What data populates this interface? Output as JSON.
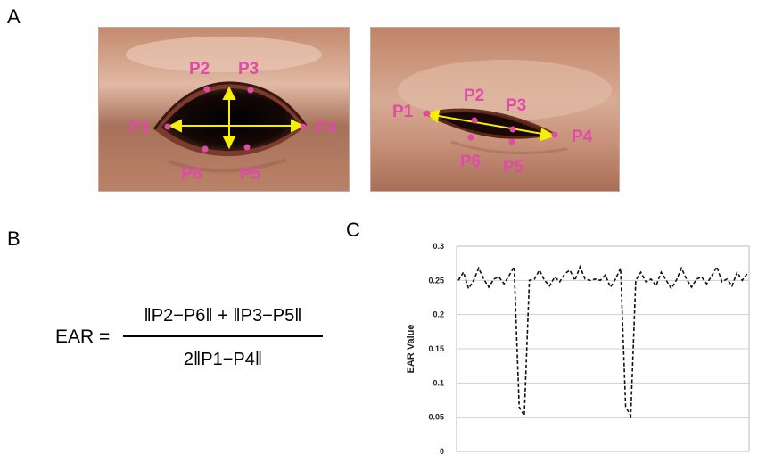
{
  "panels": {
    "a": "A",
    "b": "B",
    "c": "C"
  },
  "eye_open": {
    "points": [
      "P1",
      "P2",
      "P3",
      "P4",
      "P5",
      "P6"
    ]
  },
  "eye_closed": {
    "points": [
      "P1",
      "P2",
      "P3",
      "P4",
      "P5",
      "P6"
    ]
  },
  "formula": {
    "lhs": "EAR =",
    "numerator": "‖P2−P6‖ + ‖P3−P5‖",
    "denominator": "2‖P1−P4‖"
  },
  "colors": {
    "landmark": "#e04aa8",
    "arrow": "#f5f000",
    "grid": "#d0d0d0",
    "line": "#111111"
  },
  "chart_data": {
    "type": "line",
    "title": "",
    "xlabel": "",
    "ylabel": "EAR Value",
    "ylim": [
      0,
      0.3
    ],
    "yticks": [
      "0",
      "0.05",
      "0.1",
      "0.15",
      "0.2",
      "0.25",
      "0.3"
    ],
    "grid": true,
    "line_style": "dashed",
    "x": [
      0,
      1,
      2,
      3,
      4,
      5,
      6,
      7,
      8,
      9,
      10,
      11,
      12,
      13,
      14,
      15,
      16,
      17,
      18,
      19,
      20,
      21,
      22,
      23,
      24,
      25,
      26,
      27,
      28,
      29,
      30,
      31,
      32,
      33,
      34,
      35,
      36,
      37,
      38,
      39,
      40,
      41,
      42,
      43,
      44,
      45,
      46,
      47,
      48,
      49,
      50,
      51,
      52,
      53,
      54,
      55,
      56,
      57
    ],
    "series": [
      {
        "values": [
          0.25,
          0.262,
          0.238,
          0.25,
          0.268,
          0.252,
          0.24,
          0.252,
          0.255,
          0.245,
          0.257,
          0.27,
          0.065,
          0.052,
          0.25,
          0.252,
          0.265,
          0.25,
          0.242,
          0.255,
          0.248,
          0.26,
          0.265,
          0.25,
          0.27,
          0.252,
          0.25,
          0.252,
          0.25,
          0.258,
          0.24,
          0.252,
          0.268,
          0.065,
          0.052,
          0.25,
          0.262,
          0.248,
          0.252,
          0.242,
          0.262,
          0.25,
          0.238,
          0.25,
          0.268,
          0.252,
          0.24,
          0.252,
          0.255,
          0.245,
          0.257,
          0.27,
          0.248,
          0.252,
          0.242,
          0.262,
          0.25,
          0.26
        ]
      }
    ]
  }
}
